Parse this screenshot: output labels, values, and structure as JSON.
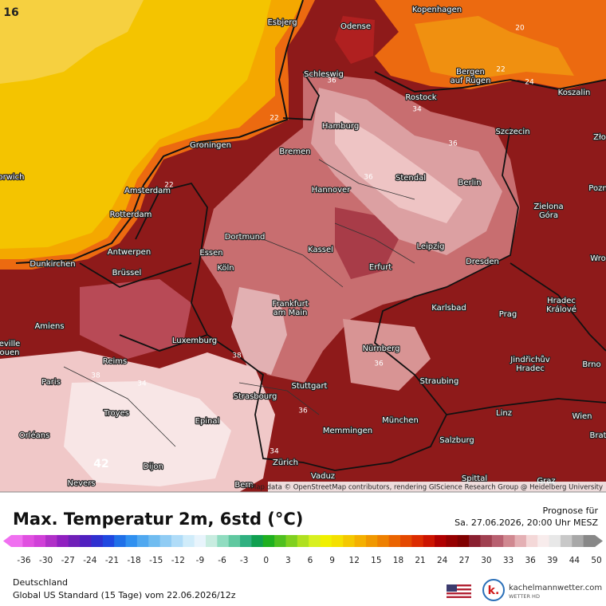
{
  "map": {
    "corner_label": "16",
    "cities": [
      "Kopenhagen",
      "Esbjerg",
      "Odense",
      "Schleswig",
      [
        "Bergen",
        "auf Rügen"
      ],
      "Rostock",
      "Koszalin",
      "Hamburg",
      "Szczecin",
      "Groningen",
      "Bremen",
      "orwich",
      "Amsterdam",
      "Hannover",
      "Stendal",
      "Berlin",
      "Pozn",
      [
        "Zielona",
        "Góra"
      ],
      "Rotterdam",
      "Dortmund",
      "Essen",
      "Antwerpen",
      "Kassel",
      "Leipzig",
      "Erfurt",
      "Dresden",
      "Wro",
      "Dunkirchen",
      "Köln",
      "Brüssel",
      [
        "Frankfurt",
        "am Main"
      ],
      "Karlsbad",
      [
        "Hradec",
        "Králové"
      ],
      "Prag",
      "Amiens",
      "Luxemburg",
      "Nürnberg",
      [
        "eville",
        "ouen"
      ],
      "Reims",
      [
        "Jindřichův",
        "Hradec"
      ],
      "Brno",
      "Paris",
      "Straubing",
      "Stuttgart",
      "Strasbourg",
      "Troyes",
      "München",
      "Wien",
      "Epinal",
      "Linz",
      "Memmingen",
      "Brat",
      "Orléans",
      "Salzburg",
      "Zürich",
      "Dijon",
      "Vaduz",
      "Spittal",
      "Nevers",
      "Bern",
      "Graz",
      "Zło"
    ],
    "contour_labels": [
      20,
      22,
      24,
      22,
      36,
      34,
      36,
      36,
      38,
      34,
      38,
      36,
      36,
      42,
      34,
      22
    ],
    "attribution": "Map data © OpenStreetMap contributors, rendering GIScience Research Group @ Heidelberg University"
  },
  "legend": {
    "title": "Max. Temperatur 2m, 6std (°C)",
    "forecast_label": "Prognose für",
    "forecast_time": "Sa. 27.06.2026, 20:00 Uhr MESZ",
    "ticks": [
      -36,
      -30,
      -27,
      -24,
      -21,
      -18,
      -15,
      -12,
      -9,
      -6,
      -3,
      0,
      3,
      6,
      9,
      12,
      15,
      18,
      21,
      24,
      27,
      30,
      33,
      36,
      39,
      44,
      50
    ],
    "colors": [
      "#f070f0",
      "#e050e0",
      "#d040d8",
      "#b030c8",
      "#9020c0",
      "#7020b8",
      "#5020c0",
      "#3030d0",
      "#2048e0",
      "#2070e8",
      "#3090f0",
      "#50a8f0",
      "#70bcf0",
      "#90ccf4",
      "#b0dcf8",
      "#d0ecfa",
      "#e8f4fc",
      "#c8ece0",
      "#90dcc0",
      "#60c8a0",
      "#30b080",
      "#10a050",
      "#20b020",
      "#50c020",
      "#80d020",
      "#b0e020",
      "#d8f020",
      "#f0f000",
      "#f4e000",
      "#f4c800",
      "#f4b000",
      "#f09800",
      "#ee8000",
      "#ea6400",
      "#e44800",
      "#dc2c00",
      "#cc1400",
      "#b00000",
      "#960000",
      "#800000",
      "#8a2030",
      "#a04050",
      "#b86070",
      "#d08890",
      "#e4b0b4",
      "#f4d8d8",
      "#f8ecec",
      "#e8e8e8",
      "#c8c8c8",
      "#a8a8a8",
      "#888888"
    ]
  },
  "footer": {
    "region": "Deutschland",
    "model": "Global US Standard (15 Tage) vom 22.06.2026/12z",
    "brand": "kachelmannwetter.com",
    "brand_sub": "WETTER HD",
    "logo": "k."
  }
}
